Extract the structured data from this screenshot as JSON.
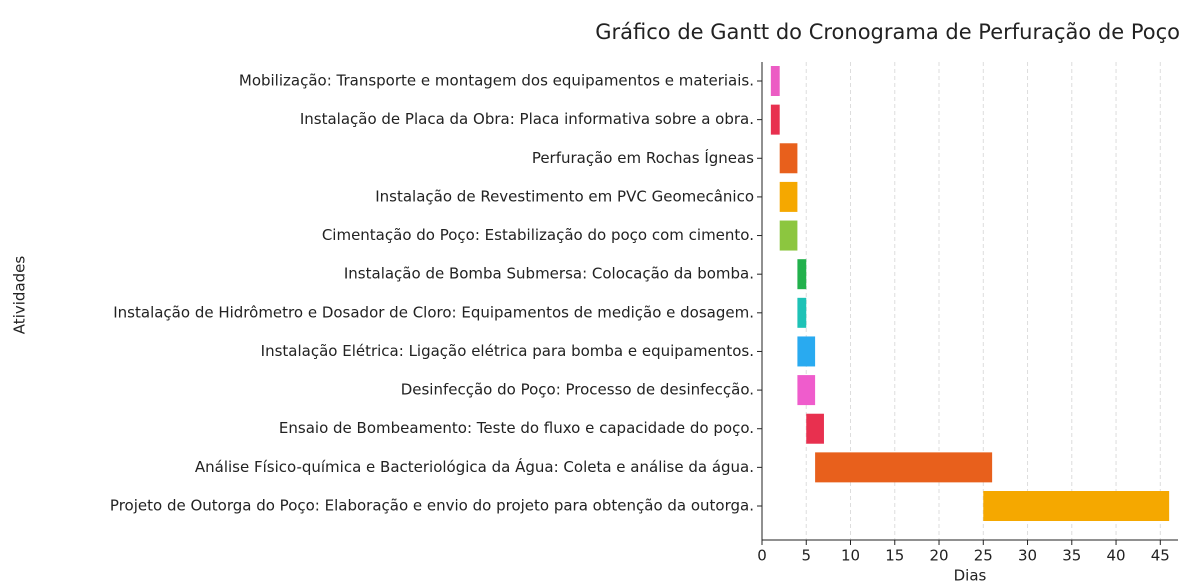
{
  "chart_data": {
    "type": "gantt",
    "title": "Gráfico de Gantt do Cronograma de Perfuração de Poço",
    "xlabel": "Dias",
    "ylabel": "Atividades",
    "categories": [
      "Mobilização: Transporte e montagem dos equipamentos e materiais.",
      "Instalação de Placa da Obra: Placa informativa sobre a obra.",
      "Perfuração em Rochas Ígneas",
      "Instalação de Revestimento em PVC Geomecânico",
      "Cimentação do Poço: Estabilização do poço com cimento.",
      "Instalação de Bomba Submersa: Colocação da bomba.",
      "Instalação de Hidrômetro e Dosador de Cloro: Equipamentos de medição e dosagem.",
      "Instalação Elétrica: Ligação elétrica para bomba e equipamentos.",
      "Desinfecção do Poço: Processo de desinfecção.",
      "Ensaio de Bombeamento: Teste do fluxo e capacidade do poço.",
      "Análise Físico-química e Bacteriológica da Água: Coleta e análise da água.",
      "Projeto de Outorga do Poço: Elaboração e envio do projeto para obtenção da outorga."
    ],
    "start": [
      1,
      1,
      2,
      2,
      2,
      4,
      4,
      4,
      4,
      5,
      6,
      25
    ],
    "duration": [
      1,
      1,
      2,
      2,
      2,
      1,
      1,
      2,
      2,
      2,
      20,
      21
    ],
    "colors": [
      "#ec5cc4",
      "#e8304f",
      "#e8601c",
      "#f5a800",
      "#8cc63f",
      "#22b14c",
      "#1ec2b6",
      "#29aaf0",
      "#ef5ccc",
      "#e8304f",
      "#e8601c",
      "#f5a800"
    ],
    "xlim": [
      0,
      47
    ],
    "xticks": [
      0,
      5,
      10,
      15,
      20,
      25,
      30,
      35,
      40,
      45
    ],
    "grid": true
  }
}
